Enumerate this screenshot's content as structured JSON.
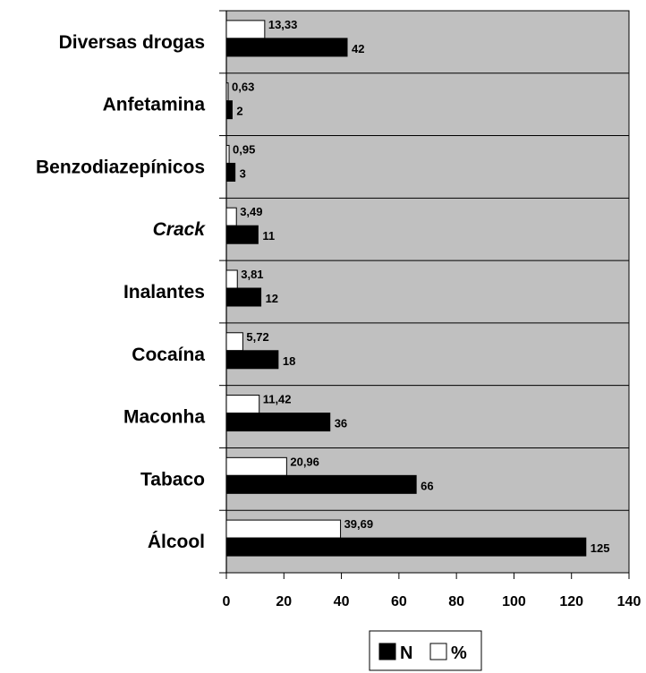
{
  "chart_data": {
    "type": "bar",
    "orientation": "horizontal",
    "categories": [
      "Diversas drogas",
      "Anfetamina",
      "Benzodiazepínicos",
      "Crack",
      "Inalantes",
      "Cocaína",
      "Maconha",
      "Tabaco",
      "Álcool"
    ],
    "italic_categories": [
      "Crack"
    ],
    "series": [
      {
        "name": "N",
        "color": "#000000",
        "values": [
          42,
          2,
          3,
          11,
          12,
          18,
          36,
          66,
          125
        ],
        "labels": [
          "42",
          "2",
          "3",
          "11",
          "12",
          "18",
          "36",
          "66",
          "125"
        ]
      },
      {
        "name": "%",
        "color": "#ffffff",
        "values": [
          13.33,
          0.63,
          0.95,
          3.49,
          3.81,
          5.72,
          11.42,
          20.96,
          39.69
        ],
        "labels": [
          "13,33",
          "0,63",
          "0,95",
          "3,49",
          "3,81",
          "5,72",
          "11,42",
          "20,96",
          "39,69"
        ]
      }
    ],
    "xlim": [
      0,
      140
    ],
    "xticks": [
      0,
      20,
      40,
      60,
      80,
      100,
      120,
      140
    ],
    "plot_background": "#c0c0c0",
    "grid": "horizontal category separators",
    "legend": {
      "placement": "bottom-center",
      "entries": [
        "N",
        "%"
      ]
    }
  }
}
